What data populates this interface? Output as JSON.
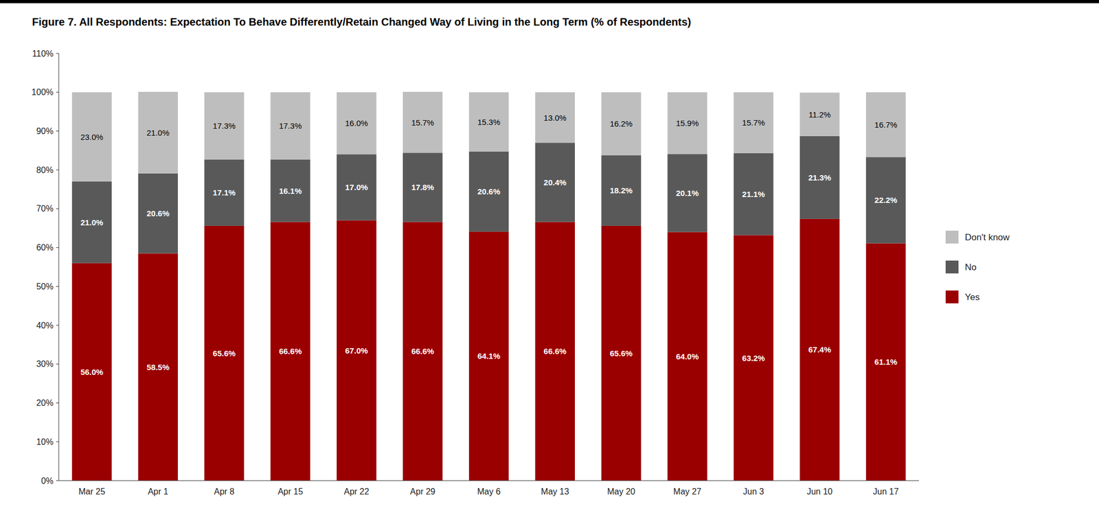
{
  "chart_data": {
    "type": "bar",
    "stacked": true,
    "title": "Figure 7. All Respondents: Expectation To Behave Differently/Retain Changed Way of Living in the Long Term (% of Respondents)",
    "categories": [
      "Mar 25",
      "Apr 1",
      "Apr 8",
      "Apr 15",
      "Apr 22",
      "Apr 29",
      "May 6",
      "May 13",
      "May 20",
      "May 27",
      "Jun 3",
      "Jun 10",
      "Jun 17"
    ],
    "series": [
      {
        "name": "Yes",
        "color": "#9B0000",
        "values": [
          56.0,
          58.5,
          65.6,
          66.6,
          67.0,
          66.6,
          64.1,
          66.6,
          65.6,
          64.0,
          63.2,
          67.4,
          61.1
        ],
        "value_labels": [
          "56.0%",
          "58.5%",
          "65.6%",
          "66.6%",
          "67.0%",
          "66.6%",
          "64.1%",
          "66.6%",
          "65.6%",
          "64.0%",
          "63.2%",
          "67.4%",
          "61.1%"
        ]
      },
      {
        "name": "No",
        "color": "#595959",
        "values": [
          21.0,
          20.6,
          17.1,
          16.1,
          17.0,
          17.8,
          20.6,
          20.4,
          18.2,
          20.1,
          21.1,
          21.3,
          22.2
        ],
        "value_labels": [
          "21.0%",
          "20.6%",
          "17.1%",
          "16.1%",
          "17.0%",
          "17.8%",
          "20.6%",
          "20.4%",
          "18.2%",
          "20.1%",
          "21.1%",
          "21.3%",
          "22.2%"
        ]
      },
      {
        "name": "Don't know",
        "color": "#BEBEBE",
        "values": [
          23.0,
          21.0,
          17.3,
          17.3,
          16.0,
          15.7,
          15.3,
          13.0,
          16.2,
          15.9,
          15.7,
          11.2,
          16.7
        ],
        "value_labels": [
          "23.0%",
          "21.0%",
          "17.3%",
          "17.3%",
          "16.0%",
          "15.7%",
          "15.3%",
          "13.0%",
          "16.2%",
          "15.9%",
          "15.7%",
          "11.2%",
          "16.7%"
        ]
      }
    ],
    "ylim": [
      0,
      110
    ],
    "yticks": [
      {
        "value": 0,
        "label": "0%"
      },
      {
        "value": 10,
        "label": "10%"
      },
      {
        "value": 20,
        "label": "20%"
      },
      {
        "value": 30,
        "label": "30%"
      },
      {
        "value": 40,
        "label": "40%"
      },
      {
        "value": 50,
        "label": "50%"
      },
      {
        "value": 60,
        "label": "60%"
      },
      {
        "value": 70,
        "label": "70%"
      },
      {
        "value": 80,
        "label": "80%"
      },
      {
        "value": 90,
        "label": "90%"
      },
      {
        "value": 100,
        "label": "100%"
      },
      {
        "value": 110,
        "label": "110%"
      }
    ],
    "grid": false,
    "legend": "right",
    "data_labels": true
  }
}
